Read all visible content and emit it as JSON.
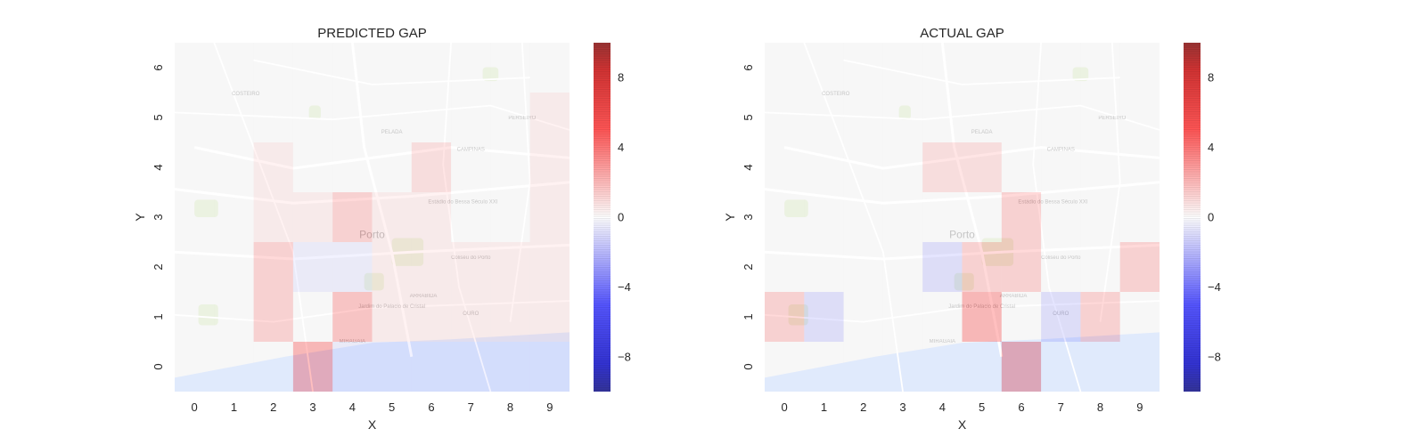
{
  "colors": {
    "map_land": "#f4f4f4",
    "map_water": "#d3e1fb",
    "map_park": "#e3ecd5",
    "cmap_min": "#0000a0",
    "cmap_mid": "#ffffff",
    "cmap_max": "#a00000"
  },
  "colorbar": {
    "range": [
      -10,
      10
    ],
    "ticks": [
      -8,
      -4,
      0,
      4,
      8
    ],
    "tick_labels": [
      "−8",
      "−4",
      "0",
      "4",
      "8"
    ]
  },
  "map_labels": [
    "COSTEIRO",
    "PELADA",
    "PERSEIRO",
    "CAMPINAS",
    "Porto",
    "ARRABIDA",
    "OURO",
    "Coliseu do Porto",
    "Jardim do Palacio de Cristal",
    "MIRAGAIA",
    "Estádio do Bessa Século XXI"
  ],
  "chart_data": [
    {
      "type": "heatmap",
      "title": "PREDICTED GAP",
      "xlabel": "X",
      "ylabel": "Y",
      "x": [
        0,
        1,
        2,
        3,
        4,
        5,
        6,
        7,
        8,
        9
      ],
      "y": [
        0,
        1,
        2,
        3,
        4,
        5,
        6
      ],
      "value_range": [
        -10,
        10
      ],
      "values": [
        [
          0,
          0,
          0,
          5,
          -1,
          -1,
          -1,
          -1,
          -1,
          -1
        ],
        [
          0,
          0,
          3,
          0,
          4,
          1,
          1,
          1,
          1,
          1
        ],
        [
          0,
          0,
          3,
          -1,
          -1,
          1,
          1,
          1,
          1,
          1
        ],
        [
          0,
          0,
          1,
          1,
          3,
          1,
          1,
          0,
          0,
          1
        ],
        [
          0,
          0,
          1,
          0,
          0,
          0,
          2,
          0,
          0,
          1
        ],
        [
          0,
          0,
          0,
          0,
          0,
          0,
          0,
          0,
          0,
          1
        ],
        [
          0,
          0,
          0,
          0,
          0,
          0,
          0,
          0,
          0,
          0
        ]
      ]
    },
    {
      "type": "heatmap",
      "title": "ACTUAL GAP",
      "xlabel": "X",
      "ylabel": "Y",
      "x": [
        0,
        1,
        2,
        3,
        4,
        5,
        6,
        7,
        8,
        9
      ],
      "y": [
        0,
        1,
        2,
        3,
        4,
        5,
        6
      ],
      "value_range": [
        -10,
        10
      ],
      "values": [
        [
          0,
          0,
          0,
          0,
          0,
          0,
          6,
          0,
          0,
          0
        ],
        [
          3,
          -2,
          0,
          0,
          0,
          5,
          0,
          -2,
          3,
          0
        ],
        [
          0,
          0,
          0,
          0,
          -2,
          3,
          3,
          0,
          0,
          3
        ],
        [
          0,
          0,
          0,
          0,
          0,
          0,
          3,
          0,
          0,
          0
        ],
        [
          0,
          0,
          0,
          0,
          2,
          2,
          0,
          0,
          0,
          0
        ],
        [
          0,
          0,
          0,
          0,
          0,
          0,
          0,
          0,
          0,
          0
        ],
        [
          0,
          0,
          0,
          0,
          0,
          0,
          0,
          0,
          0,
          0
        ]
      ]
    }
  ]
}
